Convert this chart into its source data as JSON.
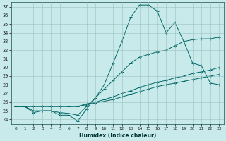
{
  "xlabel": "Humidex (Indice chaleur)",
  "background_color": "#c9eaea",
  "grid_color": "#9bbfbf",
  "line_color": "#006666",
  "xlim": [
    -0.5,
    23.5
  ],
  "ylim": [
    23.5,
    37.5
  ],
  "xticks": [
    0,
    1,
    2,
    3,
    4,
    5,
    6,
    7,
    8,
    9,
    10,
    11,
    12,
    13,
    14,
    15,
    16,
    17,
    18,
    19,
    20,
    21,
    22,
    23
  ],
  "yticks": [
    24,
    25,
    26,
    27,
    28,
    29,
    30,
    31,
    32,
    33,
    34,
    35,
    36,
    37
  ],
  "line1_x": [
    0,
    1,
    2,
    3,
    4,
    5,
    6,
    7,
    8,
    9,
    10,
    11,
    12,
    13,
    14,
    15,
    16,
    17,
    18,
    19,
    20,
    21,
    22,
    23
  ],
  "line1_y": [
    25.5,
    25.5,
    24.8,
    25.0,
    25.0,
    24.5,
    24.5,
    23.8,
    25.2,
    26.5,
    28.0,
    30.5,
    33.0,
    35.8,
    37.2,
    37.2,
    36.5,
    34.0,
    35.2,
    33.0,
    30.5,
    30.2,
    28.2,
    28.0
  ],
  "line2_x": [
    0,
    1,
    2,
    3,
    4,
    5,
    6,
    7,
    8,
    9,
    10,
    11,
    12,
    13,
    14,
    15,
    16,
    17,
    18,
    19,
    20,
    21,
    22,
    23
  ],
  "line2_y": [
    25.5,
    25.5,
    25.0,
    25.0,
    25.0,
    24.8,
    24.7,
    24.5,
    25.5,
    26.5,
    27.5,
    28.5,
    29.5,
    30.5,
    31.2,
    31.5,
    31.8,
    32.0,
    32.5,
    33.0,
    33.2,
    33.3,
    33.3,
    33.5
  ],
  "line3_x": [
    0,
    1,
    2,
    3,
    4,
    5,
    6,
    7,
    8,
    9,
    10,
    11,
    12,
    13,
    14,
    15,
    16,
    17,
    18,
    19,
    20,
    21,
    22,
    23
  ],
  "line3_y": [
    25.5,
    25.5,
    25.5,
    25.5,
    25.5,
    25.5,
    25.5,
    25.5,
    25.8,
    26.0,
    26.3,
    26.6,
    27.0,
    27.3,
    27.7,
    28.0,
    28.3,
    28.5,
    28.8,
    29.0,
    29.3,
    29.5,
    29.7,
    30.0
  ],
  "line4_x": [
    0,
    1,
    2,
    3,
    4,
    5,
    6,
    7,
    8,
    9,
    10,
    11,
    12,
    13,
    14,
    15,
    16,
    17,
    18,
    19,
    20,
    21,
    22,
    23
  ],
  "line4_y": [
    25.5,
    25.5,
    25.5,
    25.5,
    25.5,
    25.5,
    25.5,
    25.5,
    25.7,
    25.9,
    26.1,
    26.3,
    26.6,
    26.9,
    27.2,
    27.5,
    27.8,
    28.0,
    28.2,
    28.4,
    28.6,
    28.8,
    29.0,
    29.2
  ]
}
